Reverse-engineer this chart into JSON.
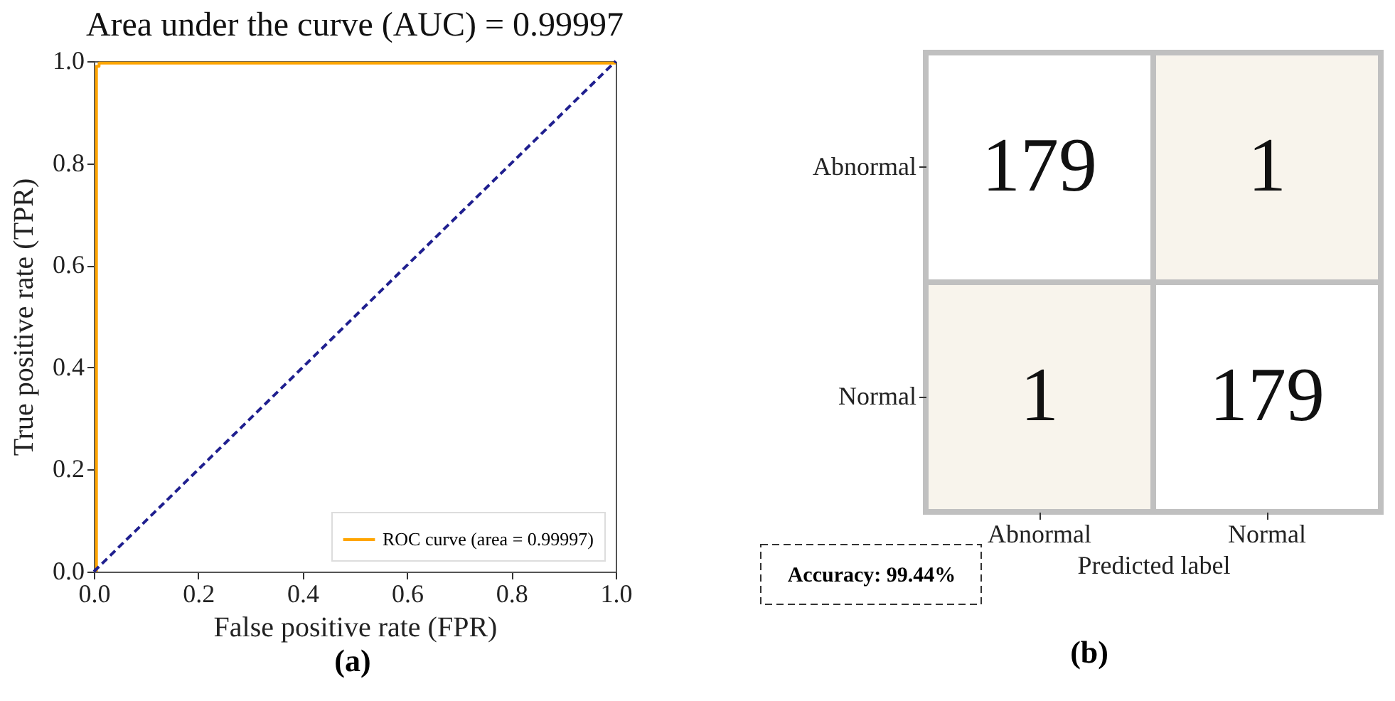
{
  "chart_data": [
    {
      "type": "line",
      "title": "Area under the curve (AUC) = 0.99997",
      "xlabel": "False positive rate (FPR)",
      "ylabel": "True positive rate (TPR)",
      "series": [
        {
          "name": "ROC curve (area = 0.99997)",
          "color": "#ffa500",
          "x": [
            0.005,
            0.005,
            0.01,
            0.01,
            1
          ],
          "values": [
            0,
            0.99,
            0.99,
            0.996,
            0.996
          ],
          "line_style": "solid"
        },
        {
          "color": "#1f1f8f",
          "x": [
            0,
            1
          ],
          "values": [
            0,
            1
          ],
          "line_style": "dashed"
        }
      ],
      "xlim": [
        0,
        1
      ],
      "ylim": [
        0,
        1
      ],
      "xticks": [
        {
          "value": 0,
          "label": "0.0"
        },
        {
          "value": 0.2,
          "label": "0.2"
        },
        {
          "value": 0.4,
          "label": "0.4"
        },
        {
          "value": 0.6,
          "label": "0.6"
        },
        {
          "value": 0.8,
          "label": "0.8"
        },
        {
          "value": 1,
          "label": "1.0"
        }
      ],
      "yticks": [
        {
          "value": 0,
          "label": "0.0"
        },
        {
          "value": 0.2,
          "label": "0.2"
        },
        {
          "value": 0.4,
          "label": "0.4"
        },
        {
          "value": 0.6,
          "label": "0.6"
        },
        {
          "value": 0.8,
          "label": "0.8"
        },
        {
          "value": 1,
          "label": "1.0"
        }
      ],
      "legend": "bottom right",
      "grid": false,
      "annotations": [
        "(a)"
      ]
    },
    {
      "type": "heatmap",
      "xlabel": "Predicted label",
      "categories": [
        "Abnormal",
        "Normal"
      ],
      "y_categories": [
        "Abnormal",
        "Normal"
      ],
      "cells": [
        [
          179,
          1
        ],
        [
          1,
          179
        ]
      ],
      "colors": [
        "#ffffff",
        "#f8f4ec",
        "#f8f4ec",
        "#ffffff"
      ],
      "data_labels": true,
      "annotations": [
        "Accuracy:  99.44%",
        "(b)"
      ]
    }
  ]
}
